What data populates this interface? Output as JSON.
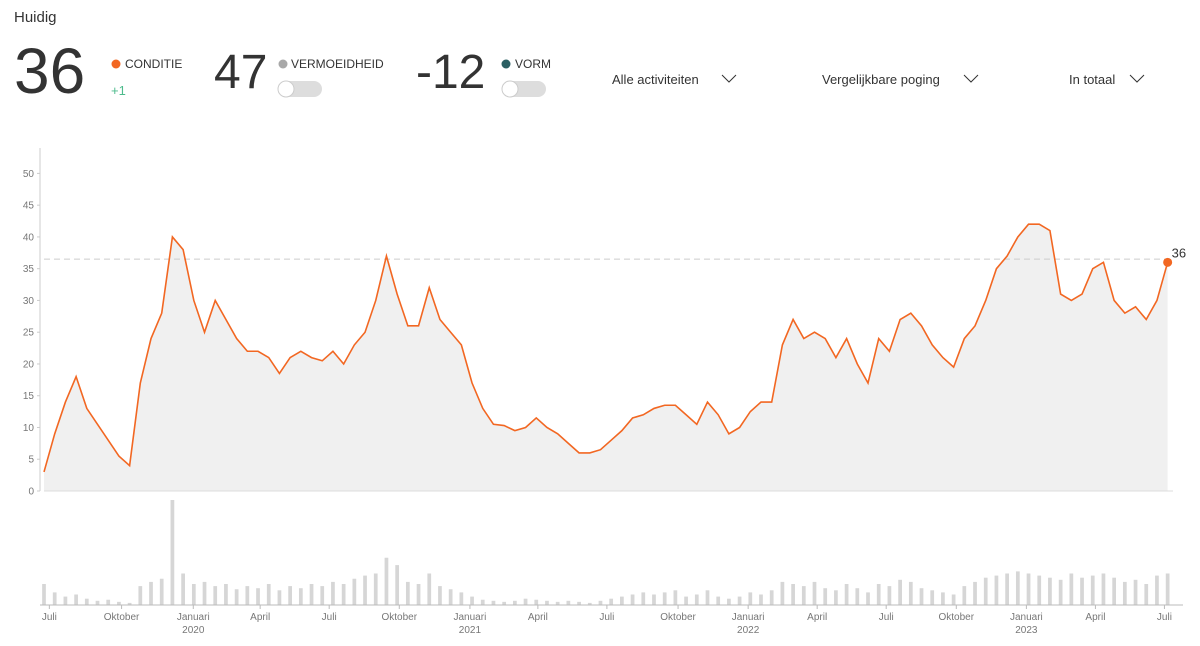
{
  "header": {
    "title": "Huidig",
    "metrics": [
      {
        "value": 36,
        "label": "CONDITIE",
        "change": "+1",
        "color": "#f26722"
      },
      {
        "value": 47,
        "label": "VERMOEIDHEID",
        "color": "#a8a8a8"
      },
      {
        "value": -12,
        "label": "VORM",
        "color": "#2b5f63"
      }
    ],
    "filters": [
      "Alle activiteiten",
      "Vergelijkbare poging",
      "In totaal"
    ]
  },
  "chart_data": {
    "type": "line",
    "color": "#f26722",
    "area_color": "#f0f0f0",
    "x": [
      0,
      2,
      4,
      6,
      8,
      10,
      12,
      14,
      16,
      18,
      20,
      22,
      24,
      26,
      28,
      30,
      32,
      34,
      36,
      38,
      40,
      42,
      44,
      46,
      48,
      50,
      52,
      54,
      56,
      58,
      60,
      62,
      64,
      66,
      68,
      70,
      72,
      74,
      76,
      78,
      80,
      82,
      84,
      86,
      88,
      90,
      92,
      94,
      96,
      98,
      100,
      102,
      104,
      106,
      108,
      110,
      112,
      114,
      116,
      118,
      120,
      122,
      124,
      126,
      128,
      130,
      132,
      134,
      136,
      138,
      140,
      142,
      144,
      146,
      148,
      150,
      152,
      154,
      156,
      158,
      160,
      162,
      164,
      166,
      168,
      170,
      172,
      174,
      176,
      178,
      180,
      182,
      184,
      186,
      188,
      190,
      192,
      194,
      196,
      198,
      200,
      202,
      204,
      206,
      208,
      210
    ],
    "values": [
      3,
      9,
      14,
      18,
      13,
      10.5,
      8,
      5.5,
      4,
      17,
      24,
      28,
      40,
      38,
      30,
      25,
      30,
      27,
      24,
      22,
      22,
      21,
      18.5,
      21,
      22,
      21,
      20.5,
      22,
      20,
      23,
      25,
      30,
      37,
      31,
      26,
      26,
      32,
      27,
      25,
      23,
      17,
      13,
      10.5,
      10.3,
      9.5,
      10,
      11.5,
      10,
      9,
      7.5,
      6,
      6,
      6.5,
      8,
      9.5,
      11.5,
      12,
      13,
      13.5,
      13.5,
      12,
      10.5,
      14,
      12,
      9,
      10,
      12.5,
      14,
      14,
      23,
      27,
      24,
      25,
      24,
      21,
      24,
      20,
      17,
      24,
      22,
      27,
      28,
      26,
      23,
      21,
      19.5,
      24,
      26,
      30,
      35,
      37,
      40,
      42,
      42,
      41,
      31,
      30,
      31,
      35,
      36,
      30,
      28,
      29,
      27,
      30,
      36
    ],
    "activity": [
      20,
      12,
      8,
      10,
      6,
      4,
      5,
      3,
      2,
      18,
      22,
      25,
      100,
      30,
      20,
      22,
      18,
      20,
      15,
      18,
      16,
      20,
      14,
      18,
      16,
      20,
      18,
      22,
      20,
      25,
      28,
      30,
      45,
      38,
      22,
      20,
      30,
      18,
      15,
      12,
      8,
      5,
      4,
      3,
      4,
      6,
      5,
      4,
      3,
      4,
      3,
      2,
      4,
      6,
      8,
      10,
      12,
      10,
      12,
      14,
      8,
      10,
      14,
      8,
      6,
      8,
      12,
      10,
      14,
      22,
      20,
      18,
      22,
      16,
      14,
      20,
      16,
      12,
      20,
      18,
      24,
      22,
      16,
      14,
      12,
      10,
      18,
      22,
      26,
      28,
      30,
      32,
      30,
      28,
      26,
      24,
      30,
      26,
      28,
      30,
      26,
      22,
      24,
      20,
      28,
      30
    ],
    "xlim": [
      0,
      211
    ],
    "ylim": [
      0,
      54
    ],
    "yticks": [
      0,
      5,
      10,
      15,
      20,
      25,
      30,
      35,
      40,
      45,
      50
    ],
    "reference": 36.5,
    "xticks": [
      {
        "value": 1,
        "label": "Juli"
      },
      {
        "value": 14.5,
        "label": "Oktober"
      },
      {
        "value": 27.9,
        "label": "Januari",
        "year": "2020"
      },
      {
        "value": 40.4,
        "label": "April"
      },
      {
        "value": 53.3,
        "label": "Juli"
      },
      {
        "value": 66.4,
        "label": "Oktober"
      },
      {
        "value": 79.6,
        "label": "Januari",
        "year": "2021"
      },
      {
        "value": 92.3,
        "label": "April"
      },
      {
        "value": 105.2,
        "label": "Juli"
      },
      {
        "value": 118.5,
        "label": "Oktober"
      },
      {
        "value": 131.6,
        "label": "Januari",
        "year": "2022"
      },
      {
        "value": 144.5,
        "label": "April"
      },
      {
        "value": 157.4,
        "label": "Juli"
      },
      {
        "value": 170.5,
        "label": "Oktober"
      },
      {
        "value": 183.6,
        "label": "Januari",
        "year": "2023"
      },
      {
        "value": 196.5,
        "label": "April"
      },
      {
        "value": 209.4,
        "label": "Juli"
      }
    ]
  }
}
